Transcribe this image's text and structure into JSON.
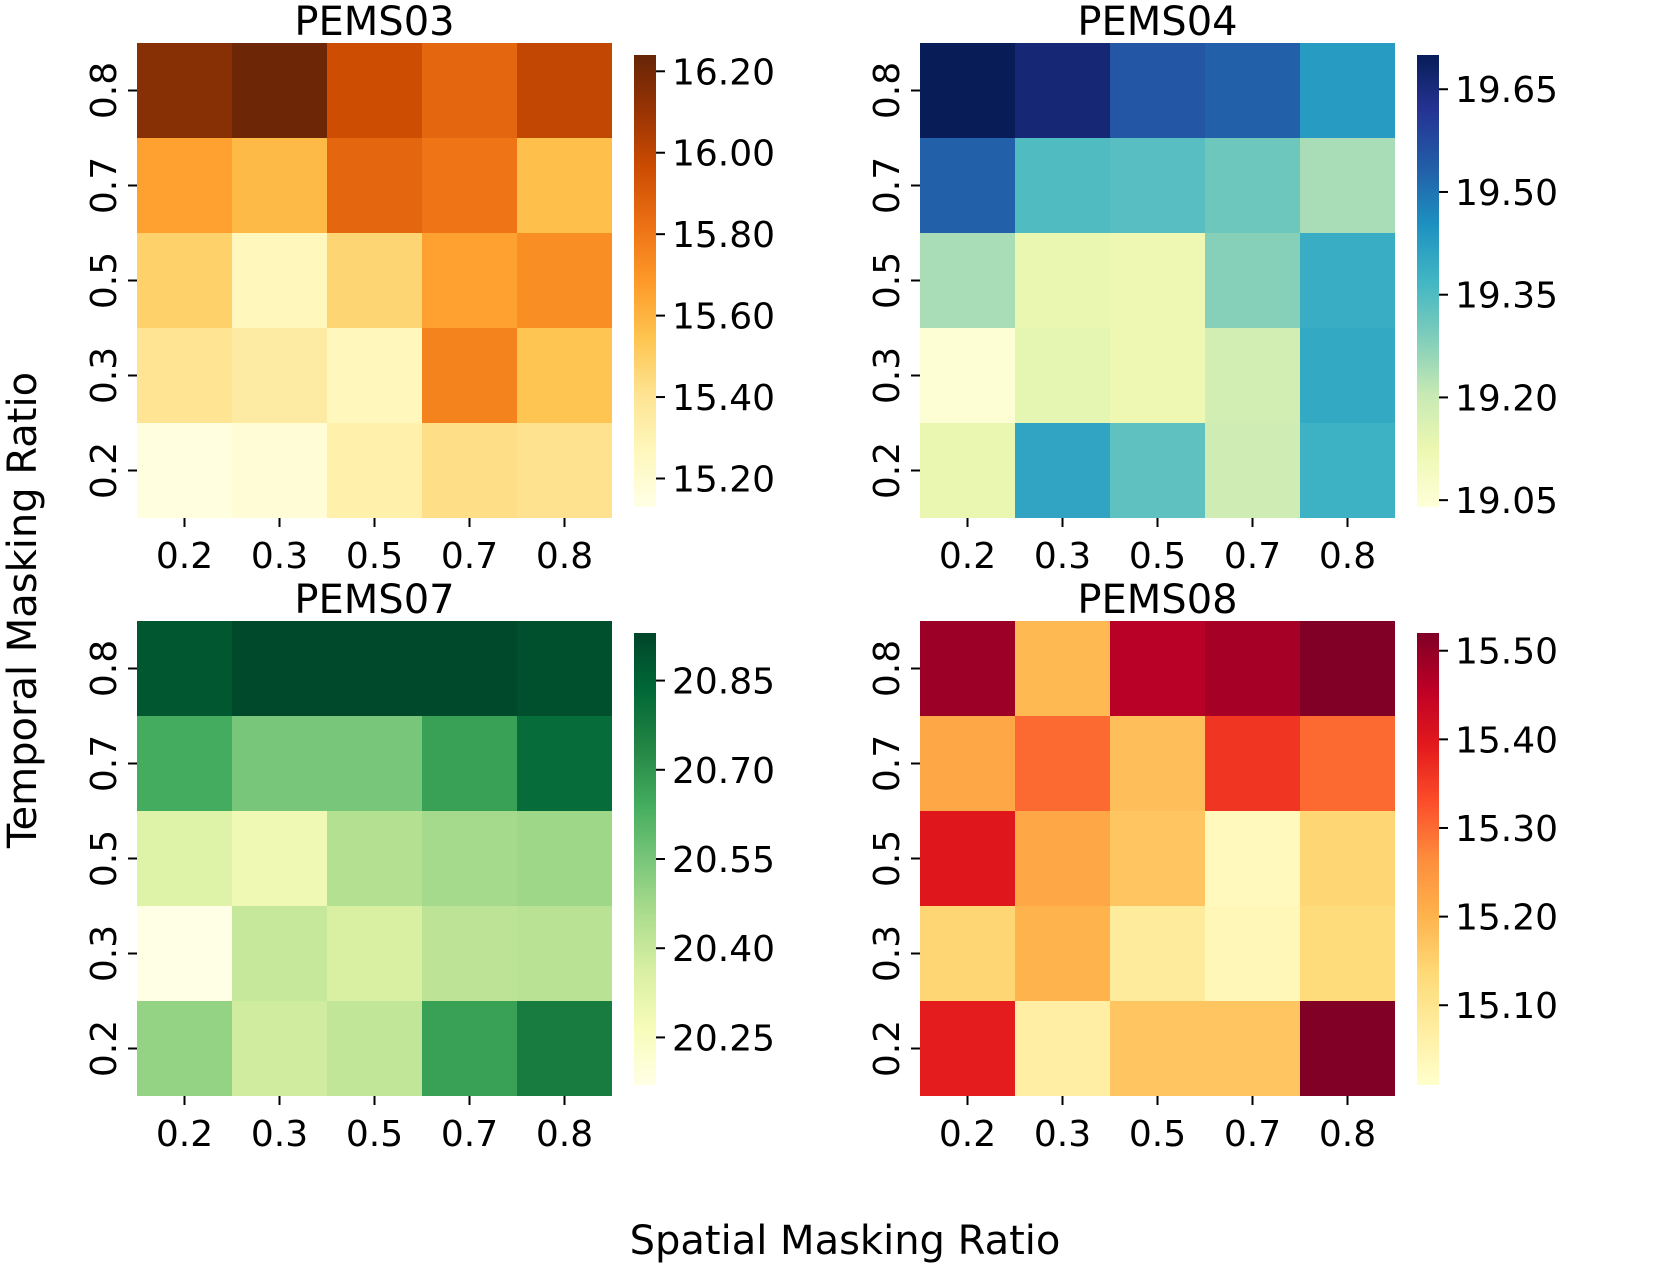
{
  "figure": {
    "xlabel": "Spatial Masking Ratio",
    "ylabel": "Temporal Masking Ratio"
  },
  "chart_data": [
    {
      "type": "heatmap",
      "title": "PEMS03",
      "colormap": "YlOrBr",
      "x_categories": [
        "0.2",
        "0.3",
        "0.5",
        "0.7",
        "0.8"
      ],
      "y_categories": [
        "0.8",
        "0.7",
        "0.5",
        "0.3",
        "0.2"
      ],
      "vmin": 15.13,
      "vmax": 16.24,
      "colorbar_ticks": [
        "16.20",
        "16.00",
        "15.80",
        "15.60",
        "15.40",
        "15.20"
      ],
      "values": [
        [
          16.15,
          16.22,
          15.96,
          15.86,
          15.99
        ],
        [
          15.66,
          15.58,
          15.86,
          15.81,
          15.56
        ],
        [
          15.49,
          15.27,
          15.47,
          15.66,
          15.72
        ],
        [
          15.4,
          15.35,
          15.27,
          15.76,
          15.54
        ],
        [
          15.15,
          15.18,
          15.32,
          15.43,
          15.41
        ]
      ]
    },
    {
      "type": "heatmap",
      "title": "PEMS04",
      "colormap": "YlGnBu",
      "x_categories": [
        "0.2",
        "0.3",
        "0.5",
        "0.7",
        "0.8"
      ],
      "y_categories": [
        "0.8",
        "0.7",
        "0.5",
        "0.3",
        "0.2"
      ],
      "vmin": 19.04,
      "vmax": 19.7,
      "colorbar_ticks": [
        "19.65",
        "19.50",
        "19.35",
        "19.20",
        "19.05"
      ],
      "values": [
        [
          19.7,
          19.66,
          19.55,
          19.53,
          19.43
        ],
        [
          19.53,
          19.35,
          19.34,
          19.31,
          19.24
        ],
        [
          19.24,
          19.13,
          19.12,
          19.28,
          19.39
        ],
        [
          19.05,
          19.14,
          19.12,
          19.18,
          19.4
        ],
        [
          19.13,
          19.41,
          19.33,
          19.19,
          19.38
        ]
      ]
    },
    {
      "type": "heatmap",
      "title": "PEMS07",
      "colormap": "YlGn",
      "x_categories": [
        "0.2",
        "0.3",
        "0.5",
        "0.7",
        "0.8"
      ],
      "y_categories": [
        "0.8",
        "0.7",
        "0.5",
        "0.3",
        "0.2"
      ],
      "vmin": 20.17,
      "vmax": 20.93,
      "colorbar_ticks": [
        "20.85",
        "20.70",
        "20.55",
        "20.40",
        "20.25"
      ],
      "values": [
        [
          20.88,
          20.92,
          20.92,
          20.92,
          20.9
        ],
        [
          20.64,
          20.55,
          20.55,
          20.67,
          20.82
        ],
        [
          20.34,
          20.29,
          20.44,
          20.47,
          20.48
        ],
        [
          20.17,
          20.4,
          20.36,
          20.42,
          20.43
        ],
        [
          20.5,
          20.38,
          20.41,
          20.67,
          20.77
        ]
      ]
    },
    {
      "type": "heatmap",
      "title": "PEMS08",
      "colormap": "YlOrRd",
      "x_categories": [
        "0.2",
        "0.3",
        "0.5",
        "0.7",
        "0.8"
      ],
      "y_categories": [
        "0.8",
        "0.7",
        "0.5",
        "0.3",
        "0.2"
      ],
      "vmin": 15.01,
      "vmax": 15.52,
      "colorbar_ticks": [
        "15.50",
        "15.40",
        "15.30",
        "15.20",
        "15.10"
      ],
      "values": [
        [
          15.49,
          15.19,
          15.46,
          15.48,
          15.52
        ],
        [
          15.22,
          15.3,
          15.18,
          15.36,
          15.3
        ],
        [
          15.4,
          15.22,
          15.17,
          15.03,
          15.14
        ],
        [
          15.14,
          15.2,
          15.08,
          15.04,
          15.13
        ],
        [
          15.39,
          15.07,
          15.17,
          15.17,
          15.52
        ]
      ]
    }
  ]
}
